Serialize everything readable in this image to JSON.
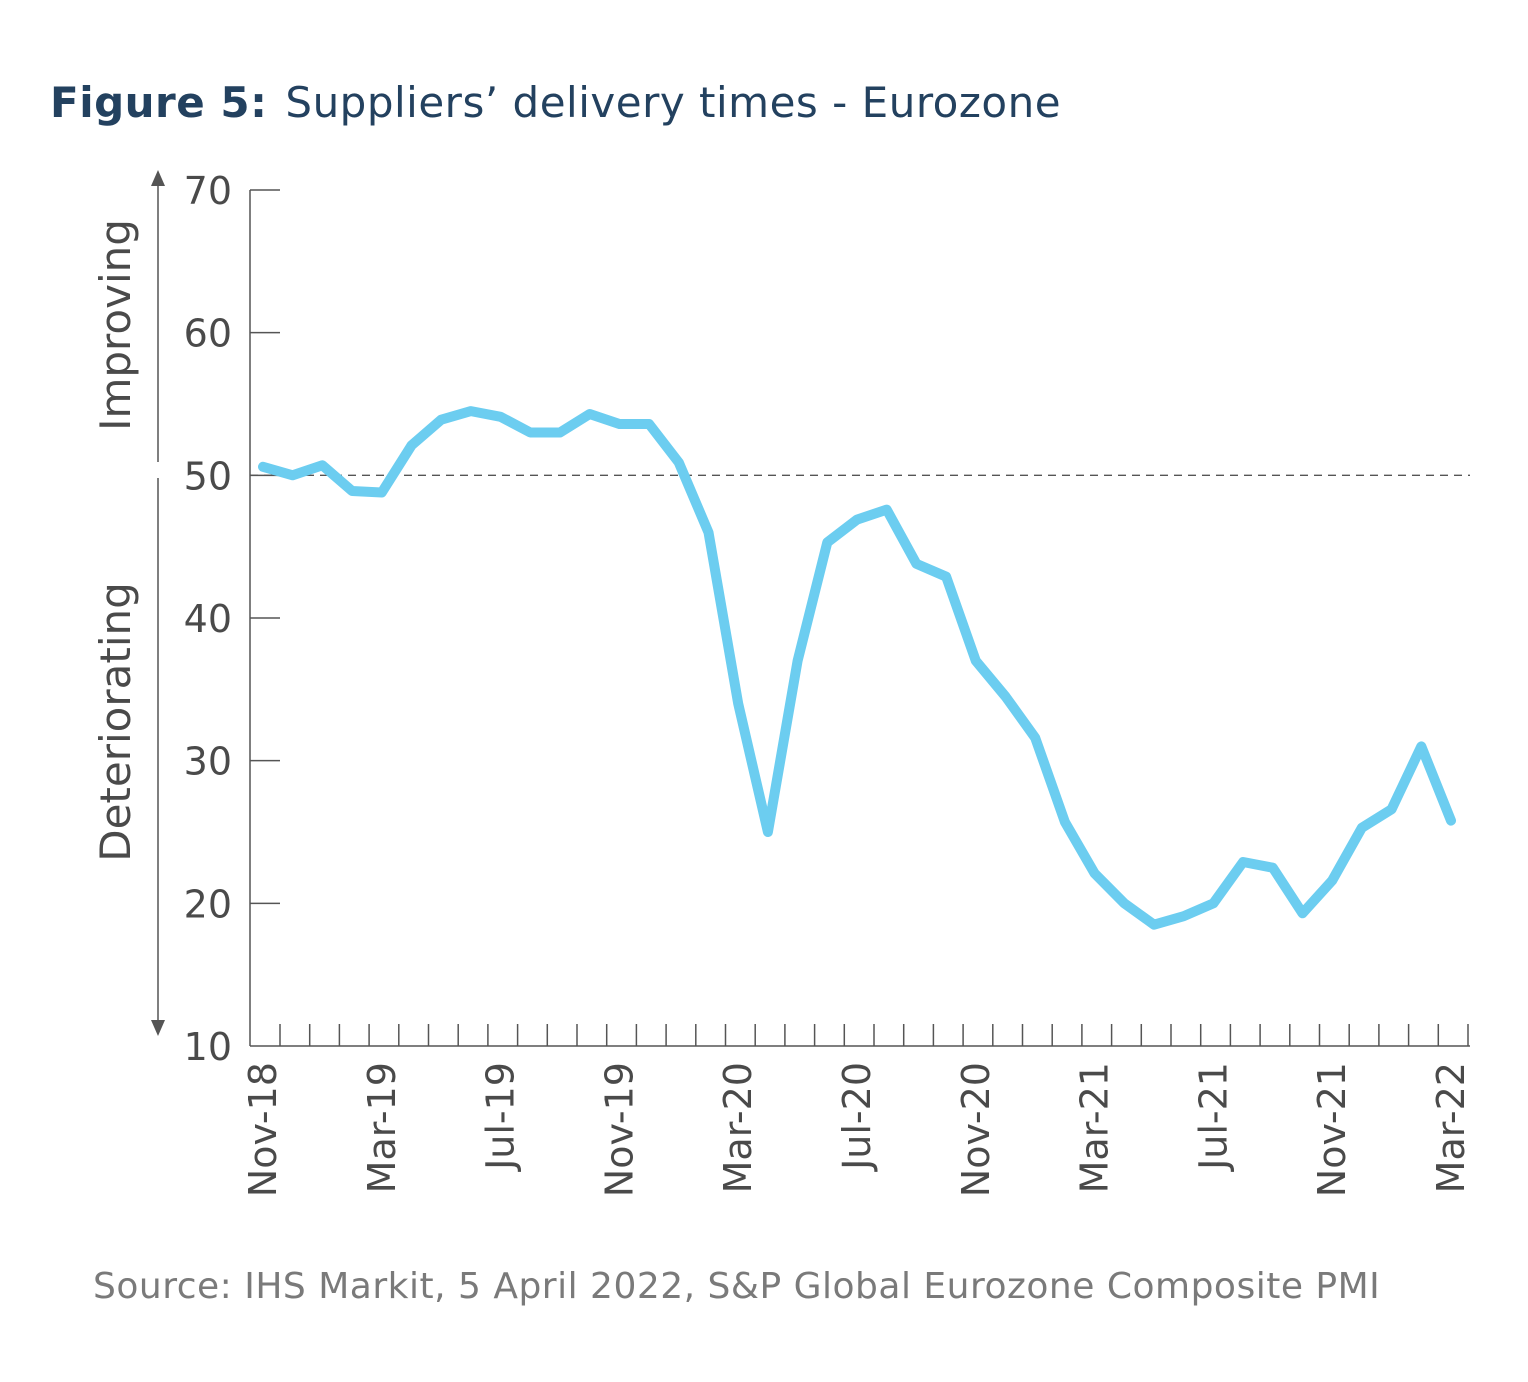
{
  "figure": {
    "label": "Figure 5:",
    "title": "Suppliers’ delivery times - Eurozone",
    "source": "Source: IHS Markit, 5 April 2022, S&P Global Eurozone Composite PMI"
  },
  "colors": {
    "line": "#6ccdf0",
    "title": "#23415f",
    "axis": "#555555",
    "text": "#4a4a4a",
    "source": "#7a7a7a"
  },
  "chart_data": {
    "type": "line",
    "title": "Suppliers’ delivery times - Eurozone",
    "ylim": [
      10,
      70
    ],
    "yticks": [
      10,
      20,
      30,
      40,
      50,
      60,
      70
    ],
    "reference_line": 50,
    "grid": false,
    "annotations": {
      "upper": "Improving",
      "lower": "Deteriorating"
    },
    "xtick_labels": [
      "Nov-18",
      "Mar-19",
      "Jul-19",
      "Nov-19",
      "Mar-20",
      "Jul-20",
      "Nov-20",
      "Mar-21",
      "Jul-21",
      "Nov-21",
      "Mar-22"
    ],
    "x": [
      "Nov-18",
      "Dec-18",
      "Jan-19",
      "Feb-19",
      "Mar-19",
      "Apr-19",
      "May-19",
      "Jun-19",
      "Jul-19",
      "Aug-19",
      "Sep-19",
      "Oct-19",
      "Nov-19",
      "Dec-19",
      "Jan-20",
      "Feb-20",
      "Mar-20",
      "Apr-20",
      "May-20",
      "Jun-20",
      "Jul-20",
      "Aug-20",
      "Sep-20",
      "Oct-20",
      "Nov-20",
      "Dec-20",
      "Jan-21",
      "Feb-21",
      "Mar-21",
      "Apr-21",
      "May-21",
      "Jun-21",
      "Jul-21",
      "Aug-21",
      "Sep-21",
      "Oct-21",
      "Nov-21",
      "Dec-21",
      "Jan-22",
      "Feb-22",
      "Mar-22"
    ],
    "series": [
      {
        "values": [
          50.6,
          50.0,
          50.7,
          48.9,
          48.8,
          52.1,
          53.9,
          54.5,
          54.1,
          53.0,
          53.0,
          54.3,
          53.6,
          53.6,
          50.9,
          46.0,
          34.0,
          25.0,
          37.0,
          45.3,
          46.9,
          47.6,
          43.8,
          42.9,
          37.0,
          34.5,
          31.6,
          25.7,
          22.1,
          20.0,
          18.5,
          19.1,
          20.0,
          22.9,
          22.5,
          19.3,
          21.6,
          25.3,
          26.6,
          31.0,
          25.8
        ]
      }
    ]
  }
}
